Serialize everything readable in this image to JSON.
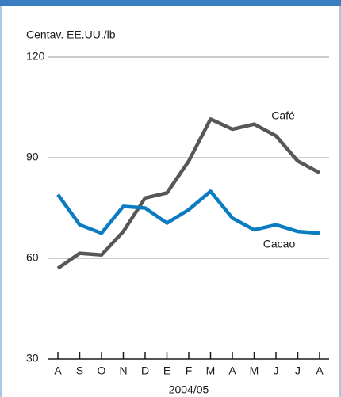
{
  "chart_data": {
    "type": "line",
    "y_axis_label": "Centav. EE.UU./lb",
    "x_axis_label": "2004/05",
    "categories": [
      "A",
      "S",
      "O",
      "N",
      "D",
      "E",
      "F",
      "M",
      "A",
      "M",
      "J",
      "J",
      "A"
    ],
    "series": [
      {
        "name": "Café",
        "color": "#575757",
        "values": [
          57,
          61.5,
          61,
          68,
          78,
          79.5,
          89,
          101.5,
          98.5,
          100,
          96.5,
          89,
          85.5
        ]
      },
      {
        "name": "Cacao",
        "color": "#0b7cc2",
        "values": [
          79,
          70,
          67.5,
          75.5,
          75,
          70.5,
          74.5,
          80,
          72,
          68.5,
          70,
          68,
          67.5
        ]
      }
    ],
    "ylim": [
      30,
      120
    ],
    "yticks": [
      30,
      60,
      90,
      120
    ],
    "grid": true
  }
}
